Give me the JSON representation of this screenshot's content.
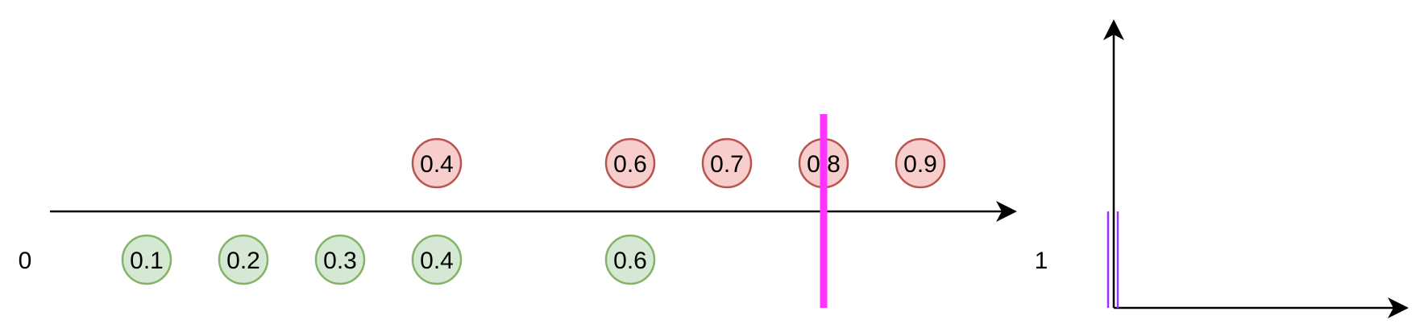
{
  "axis": {
    "start_label": "0",
    "end_label": "1"
  },
  "red_nodes": [
    {
      "label": "0.4"
    },
    {
      "label": "0.6"
    },
    {
      "label": "0.7"
    },
    {
      "label": "0.8"
    },
    {
      "label": "0.9"
    }
  ],
  "green_nodes": [
    {
      "label": "0.1"
    },
    {
      "label": "0.2"
    },
    {
      "label": "0.3"
    },
    {
      "label": "0.4"
    },
    {
      "label": "0.6"
    }
  ],
  "colors": {
    "red_fill": "#f8cecc",
    "red_stroke": "#b85450",
    "green_fill": "#d5e8d4",
    "green_stroke": "#82b366",
    "threshold": "#ff33ff",
    "purple": "#9933ff",
    "axis": "#000000"
  }
}
